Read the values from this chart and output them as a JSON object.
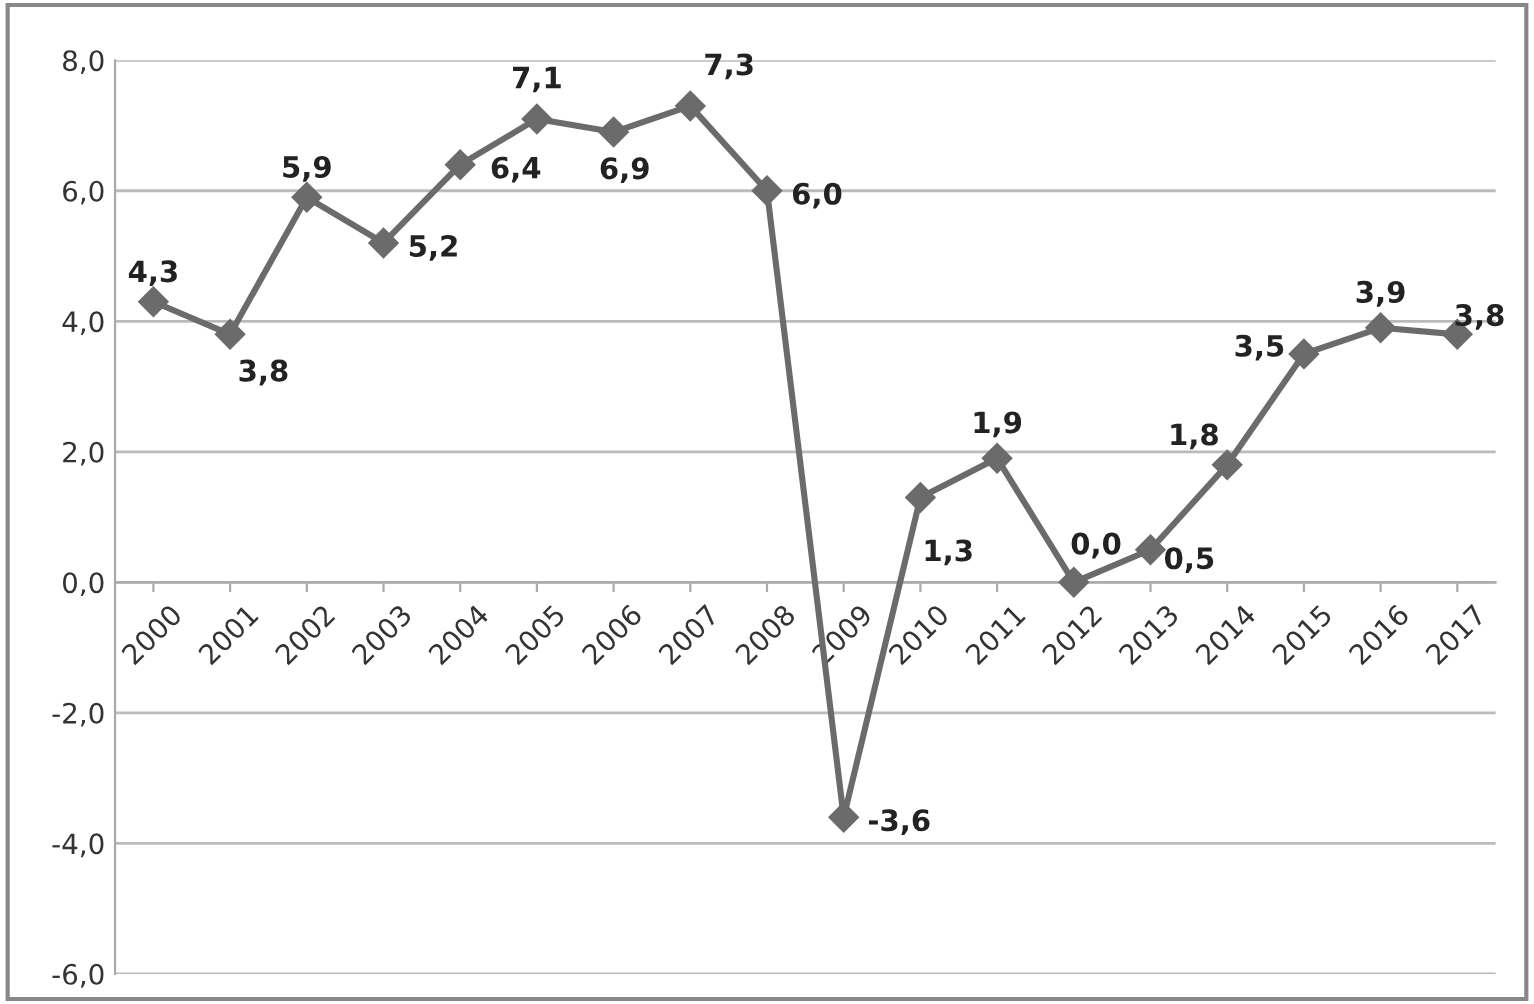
{
  "chart_data": {
    "type": "line",
    "categories": [
      "2000",
      "2001",
      "2002",
      "2003",
      "2004",
      "2005",
      "2006",
      "2007",
      "2008",
      "2009",
      "2010",
      "2011",
      "2012",
      "2013",
      "2014",
      "2015",
      "2016",
      "2017"
    ],
    "series": [
      {
        "color": "#6b6b6b",
        "values": [
          4.3,
          3.8,
          5.9,
          5.2,
          6.4,
          7.1,
          6.9,
          7.3,
          6.0,
          -3.6,
          1.3,
          1.9,
          0.0,
          0.5,
          1.8,
          3.5,
          3.9,
          3.8
        ],
        "value_labels": [
          "4,3",
          "3,8",
          "5,9",
          "5,2",
          "6,4",
          "7,1",
          "6,9",
          "7,3",
          "6,0",
          "-3,6",
          "1,3",
          "1,9",
          "0,0",
          "0,5",
          "1,8",
          "3,5",
          "3,9",
          "3,8"
        ]
      }
    ],
    "ylim": [
      -6,
      8
    ],
    "yticks": [
      {
        "value": -6,
        "label": "-6,0"
      },
      {
        "value": -4,
        "label": "-4,0"
      },
      {
        "value": -2,
        "label": "-2,0"
      },
      {
        "value": 0,
        "label": "0,0"
      },
      {
        "value": 2,
        "label": "2,0"
      },
      {
        "value": 4,
        "label": "4,0"
      },
      {
        "value": 6,
        "label": "6,0"
      },
      {
        "value": 8,
        "label": "8,0"
      }
    ],
    "grid": "y",
    "marker": "diamond",
    "line_style": "solid",
    "legend": false
  }
}
